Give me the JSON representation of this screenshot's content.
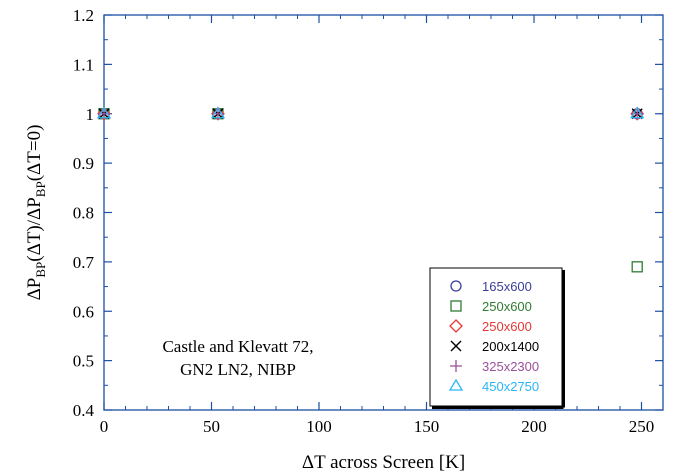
{
  "chart_data": {
    "type": "scatter",
    "xlabel": "ΔT across Screen [K]",
    "ylabel": {
      "parts": [
        {
          "t": "ΔP"
        },
        {
          "t": "BP",
          "sub": true
        },
        {
          "t": "(ΔT)/ΔP"
        },
        {
          "t": "BP",
          "sub": true
        },
        {
          "t": "(ΔT=0)"
        }
      ]
    },
    "xlim": [
      0,
      260
    ],
    "ylim": [
      0.4,
      1.2
    ],
    "xticks": [
      0,
      50,
      100,
      150,
      200,
      250
    ],
    "yticks": [
      0.4,
      0.5,
      0.6,
      0.7,
      0.8,
      0.9,
      1,
      1.1,
      1.2
    ],
    "xtick_labels": [
      "0",
      "50",
      "100",
      "150",
      "200",
      "250"
    ],
    "ytick_labels": [
      "0.4",
      "0.5",
      "0.6",
      "0.7",
      "0.8",
      "0.9",
      "1",
      "1.1",
      "1.2"
    ],
    "grid": false,
    "legend_position": "bottom-right",
    "annotation": [
      "Castle and Klevatt 72,",
      "GN2 LN2, NIBP"
    ],
    "series": [
      {
        "name": "165x600",
        "marker": "circle",
        "color": "#3b3f9a",
        "x": [
          0,
          53,
          248
        ],
        "y": [
          1,
          1,
          1
        ]
      },
      {
        "name": "250x600",
        "marker": "square",
        "color": "#2e7d32",
        "x": [
          0,
          53,
          248
        ],
        "y": [
          1,
          1,
          0.69
        ]
      },
      {
        "name": "250x600",
        "marker": "diamond",
        "color": "#e53935",
        "x": [
          0,
          53,
          248
        ],
        "y": [
          1,
          1,
          1
        ]
      },
      {
        "name": "200x1400",
        "marker": "x",
        "color": "#000000",
        "x": [
          0,
          53,
          248
        ],
        "y": [
          1,
          1,
          1
        ]
      },
      {
        "name": "325x2300",
        "marker": "plus",
        "color": "#9c4f9a",
        "x": [
          0,
          53,
          248
        ],
        "y": [
          1,
          1,
          1
        ]
      },
      {
        "name": "450x2750",
        "marker": "triangle",
        "color": "#29b6f6",
        "x": [
          0,
          53,
          248
        ],
        "y": [
          1,
          1,
          1
        ]
      }
    ]
  }
}
